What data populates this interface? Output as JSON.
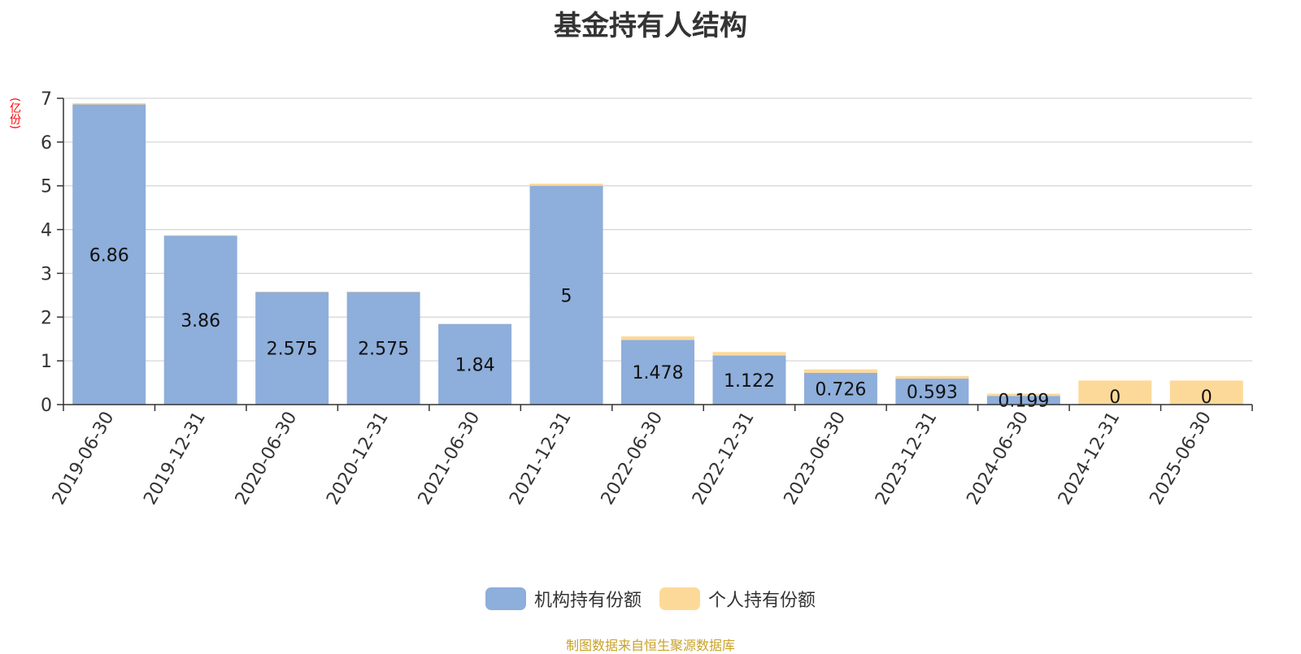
{
  "title": "基金持有人结构",
  "unit_label": "(亿份)",
  "source_note": "制图数据来自恒生聚源数据库",
  "colors": {
    "institutional": "#8eaedb",
    "individual": "#fdd999",
    "unit_label": "#ff0000",
    "source_note": "#c9a227",
    "grid": "#cccccc",
    "axis": "#333333"
  },
  "legend": [
    {
      "label": "机构持有份额",
      "color_key": "institutional"
    },
    {
      "label": "个人持有份额",
      "color_key": "individual"
    }
  ],
  "chart_data": {
    "type": "bar",
    "stacked": true,
    "categories": [
      "2019-06-30",
      "2019-12-31",
      "2020-06-30",
      "2020-12-31",
      "2021-06-30",
      "2021-12-31",
      "2022-06-30",
      "2022-12-31",
      "2023-06-30",
      "2023-12-31",
      "2024-06-30",
      "2024-12-31",
      "2025-06-30"
    ],
    "series": [
      {
        "name": "机构持有份额",
        "values": [
          6.86,
          3.86,
          2.575,
          2.575,
          1.84,
          5,
          1.478,
          1.122,
          0.726,
          0.593,
          0.199,
          0,
          0
        ],
        "labels": [
          "6.86",
          "3.86",
          "2.575",
          "2.575",
          "1.84",
          "5",
          "1.478",
          "1.122",
          "0.726",
          "0.593",
          "0.199",
          "0",
          "0"
        ]
      },
      {
        "name": "个人持有份额",
        "values": [
          0.03,
          0.01,
          0.005,
          0.005,
          0.01,
          0.05,
          0.08,
          0.08,
          0.08,
          0.06,
          0.05,
          0.55,
          0.55
        ]
      }
    ],
    "ylim": [
      0,
      7
    ],
    "yticks": [
      0,
      1,
      2,
      3,
      4,
      5,
      6,
      7
    ],
    "grid": true,
    "legend_position": "bottom-center"
  }
}
